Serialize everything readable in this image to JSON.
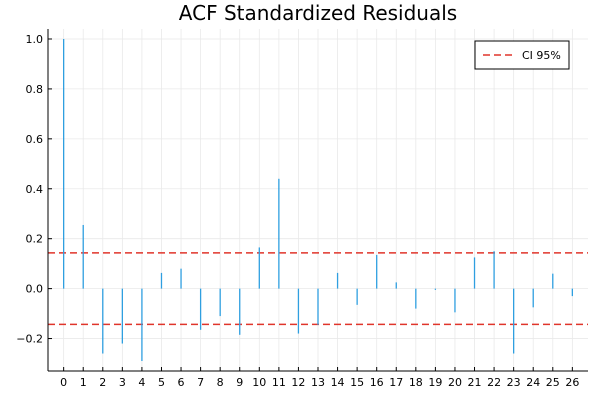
{
  "chart_data": {
    "type": "bar",
    "title": "ACF Standardized  Residuals",
    "xlabel": "",
    "ylabel": "",
    "x": [
      0,
      1,
      2,
      3,
      4,
      5,
      6,
      7,
      8,
      9,
      10,
      11,
      12,
      13,
      14,
      15,
      16,
      17,
      18,
      19,
      20,
      21,
      22,
      23,
      24,
      25,
      26
    ],
    "values": [
      1.0,
      0.255,
      -0.26,
      -0.22,
      -0.29,
      0.063,
      0.08,
      -0.165,
      -0.11,
      -0.185,
      0.165,
      0.44,
      -0.18,
      -0.145,
      0.063,
      -0.065,
      0.135,
      0.025,
      -0.08,
      -0.005,
      -0.095,
      0.125,
      0.15,
      -0.26,
      -0.075,
      0.06,
      -0.03
    ],
    "ci_upper": 0.143,
    "ci_lower": -0.143,
    "xlim": [
      -0.8,
      26.8
    ],
    "ylim": [
      -0.33,
      1.04
    ],
    "xticks": [
      0,
      1,
      2,
      3,
      4,
      5,
      6,
      7,
      8,
      9,
      10,
      11,
      12,
      13,
      14,
      15,
      16,
      17,
      18,
      19,
      20,
      21,
      22,
      23,
      24,
      25,
      26
    ],
    "yticks": [
      -0.2,
      0.0,
      0.2,
      0.4,
      0.6,
      0.8,
      1.0
    ],
    "ytick_labels": [
      "−0.2",
      "0.0",
      "0.2",
      "0.4",
      "0.6",
      "0.8",
      "1.0"
    ],
    "grid": true,
    "legend": {
      "placement": "top-right",
      "entries": [
        {
          "label": "CI 95%",
          "style": "dashed"
        }
      ]
    },
    "colors": {
      "bars": "#2f9fe0",
      "ci": "#e0352b",
      "grid": "#e9e9e9",
      "axis": "#000000"
    }
  }
}
